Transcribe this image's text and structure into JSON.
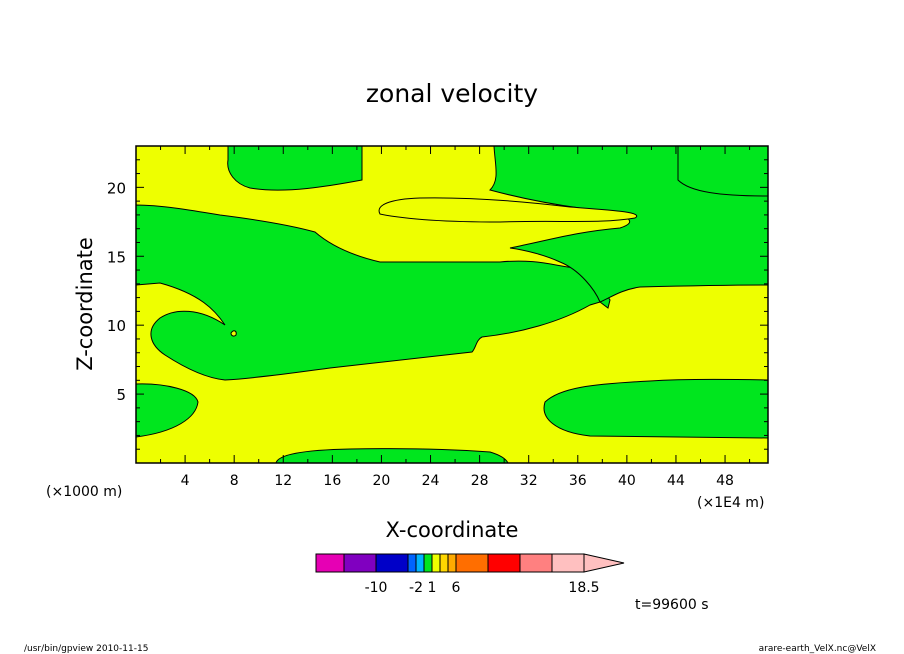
{
  "chart_data": {
    "type": "contour",
    "title": "zonal velocity",
    "xlabel": "X-coordinate",
    "ylabel": "Z-coordinate",
    "x_unit_left": "(×1000 m)",
    "x_unit_right": "(×1E4 m)",
    "xlim": [
      0,
      51.5
    ],
    "ylim": [
      0,
      23
    ],
    "x_ticks": [
      4,
      8,
      12,
      16,
      20,
      24,
      28,
      32,
      36,
      40,
      44,
      48
    ],
    "y_ticks": [
      5,
      10,
      15,
      20
    ],
    "colors": {
      "positive": "#eeff00",
      "negative": "#00e61e",
      "outline": "#000000"
    },
    "regions_negative": [
      {
        "name": "upper-left band",
        "x_range": [
          0,
          39
        ],
        "z_range": [
          6,
          18.5
        ]
      },
      {
        "name": "top-left lobe",
        "x_range": [
          7.5,
          18.5
        ],
        "z_range": [
          19.5,
          23
        ]
      },
      {
        "name": "top-middle lobe",
        "x_range": [
          20,
          41
        ],
        "z_range": [
          17,
          23
        ]
      },
      {
        "name": "top-right lobe",
        "x_range": [
          44,
          51.5
        ],
        "z_range": [
          19,
          23
        ]
      },
      {
        "name": "right band",
        "x_range": [
          29,
          51.5
        ],
        "z_range": [
          12.5,
          19
        ]
      },
      {
        "name": "bottom-left lobe",
        "x_range": [
          0,
          5
        ],
        "z_range": [
          2,
          5.8
        ]
      },
      {
        "name": "bottom-right lobe",
        "x_range": [
          33,
          51.5
        ],
        "z_range": [
          2,
          6
        ]
      },
      {
        "name": "bottom-middle lobe",
        "x_range": [
          11,
          30
        ],
        "z_range": [
          0,
          1
        ]
      }
    ],
    "colorbar": {
      "colors": [
        "#e600b4",
        "#8000c0",
        "#0000c8",
        "#0064ff",
        "#00b4ff",
        "#00e61e",
        "#eeff00",
        "#ffd700",
        "#ffaa00",
        "#ff6e00",
        "#ff0000",
        "#ff8080",
        "#ffc0c0"
      ],
      "labels": [
        "-10",
        "-2",
        "1",
        "6",
        "18.5"
      ]
    },
    "time_label": "t=99600 s"
  },
  "footer": {
    "left": "/usr/bin/gpview  2010-11-15",
    "right": "arare-earth_VelX.nc@VelX"
  }
}
